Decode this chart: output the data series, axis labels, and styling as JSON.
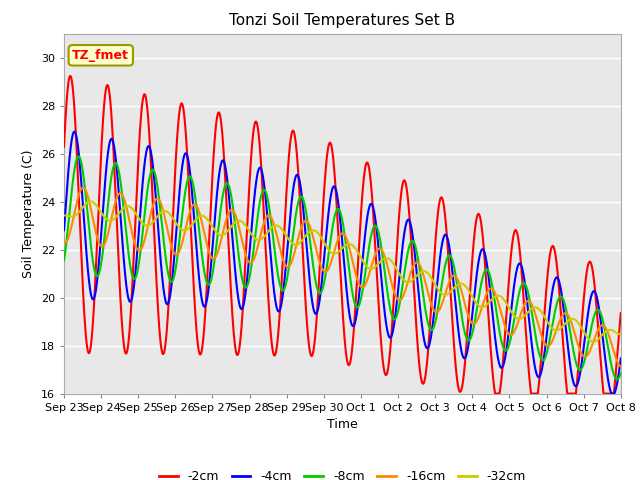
{
  "title": "Tonzi Soil Temperatures Set B",
  "xlabel": "Time",
  "ylabel": "Soil Temperature (C)",
  "ylim": [
    16,
    31
  ],
  "plot_bg_color": "#e8e8e8",
  "grid_color": "white",
  "annotation_label": "TZ_fmet",
  "annotation_bg": "#ffffcc",
  "annotation_border": "#999900",
  "series_colors": {
    "-2cm": "#ff0000",
    "-4cm": "#0000ff",
    "-8cm": "#00cc00",
    "-16cm": "#ff8800",
    "-32cm": "#cccc00"
  },
  "legend_entries": [
    "-2cm",
    "-4cm",
    "-8cm",
    "-16cm",
    "-32cm"
  ],
  "tick_labels": [
    "Sep 23",
    "Sep 24",
    "Sep 25",
    "Sep 26",
    "Sep 27",
    "Sep 28",
    "Sep 29",
    "Sep 30",
    "Oct 1",
    "Oct 2",
    "Oct 3",
    "Oct 4",
    "Oct 5",
    "Oct 6",
    "Oct 7",
    "Oct 8"
  ],
  "yticks": [
    16,
    18,
    20,
    22,
    24,
    26,
    28,
    30
  ],
  "linewidth": 1.5
}
